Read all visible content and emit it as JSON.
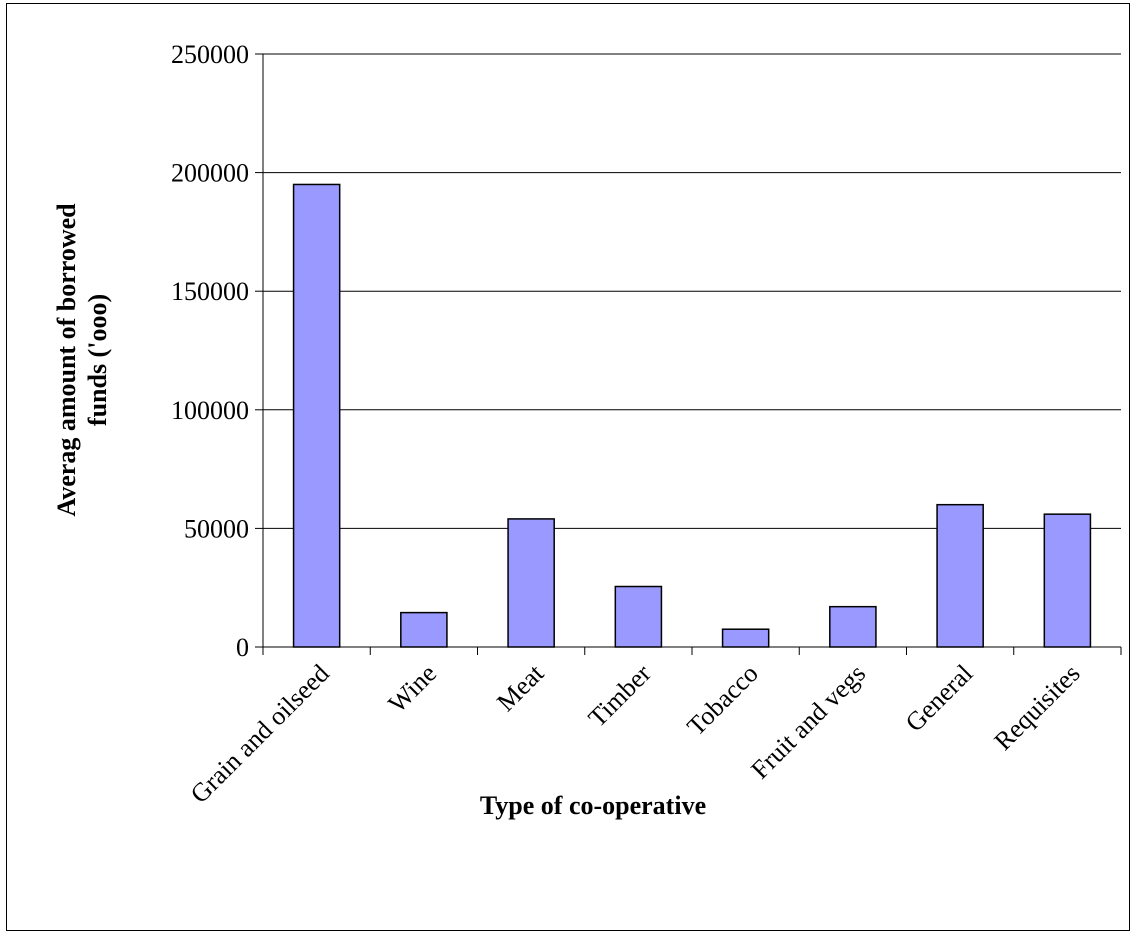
{
  "chart_data": {
    "type": "bar",
    "title": "",
    "xlabel": "Type of co-operative",
    "ylabel_line1": "Averag amount of borrowed",
    "ylabel_line2": "funds ('ooo)",
    "categories": [
      "Grain and oilseed",
      "Wine",
      "Meat",
      "Timber",
      "Tobacco",
      "Fruit and vegs",
      "General",
      "Requisites"
    ],
    "values": [
      195000,
      14500,
      54000,
      25500,
      7500,
      17000,
      60000,
      56000
    ],
    "ylim": [
      0,
      250000
    ],
    "yticks": [
      0,
      50000,
      100000,
      150000,
      200000,
      250000
    ],
    "grid": true,
    "legend": "none",
    "bar_color": "#9999ff",
    "bar_edge_color": "#000000"
  }
}
